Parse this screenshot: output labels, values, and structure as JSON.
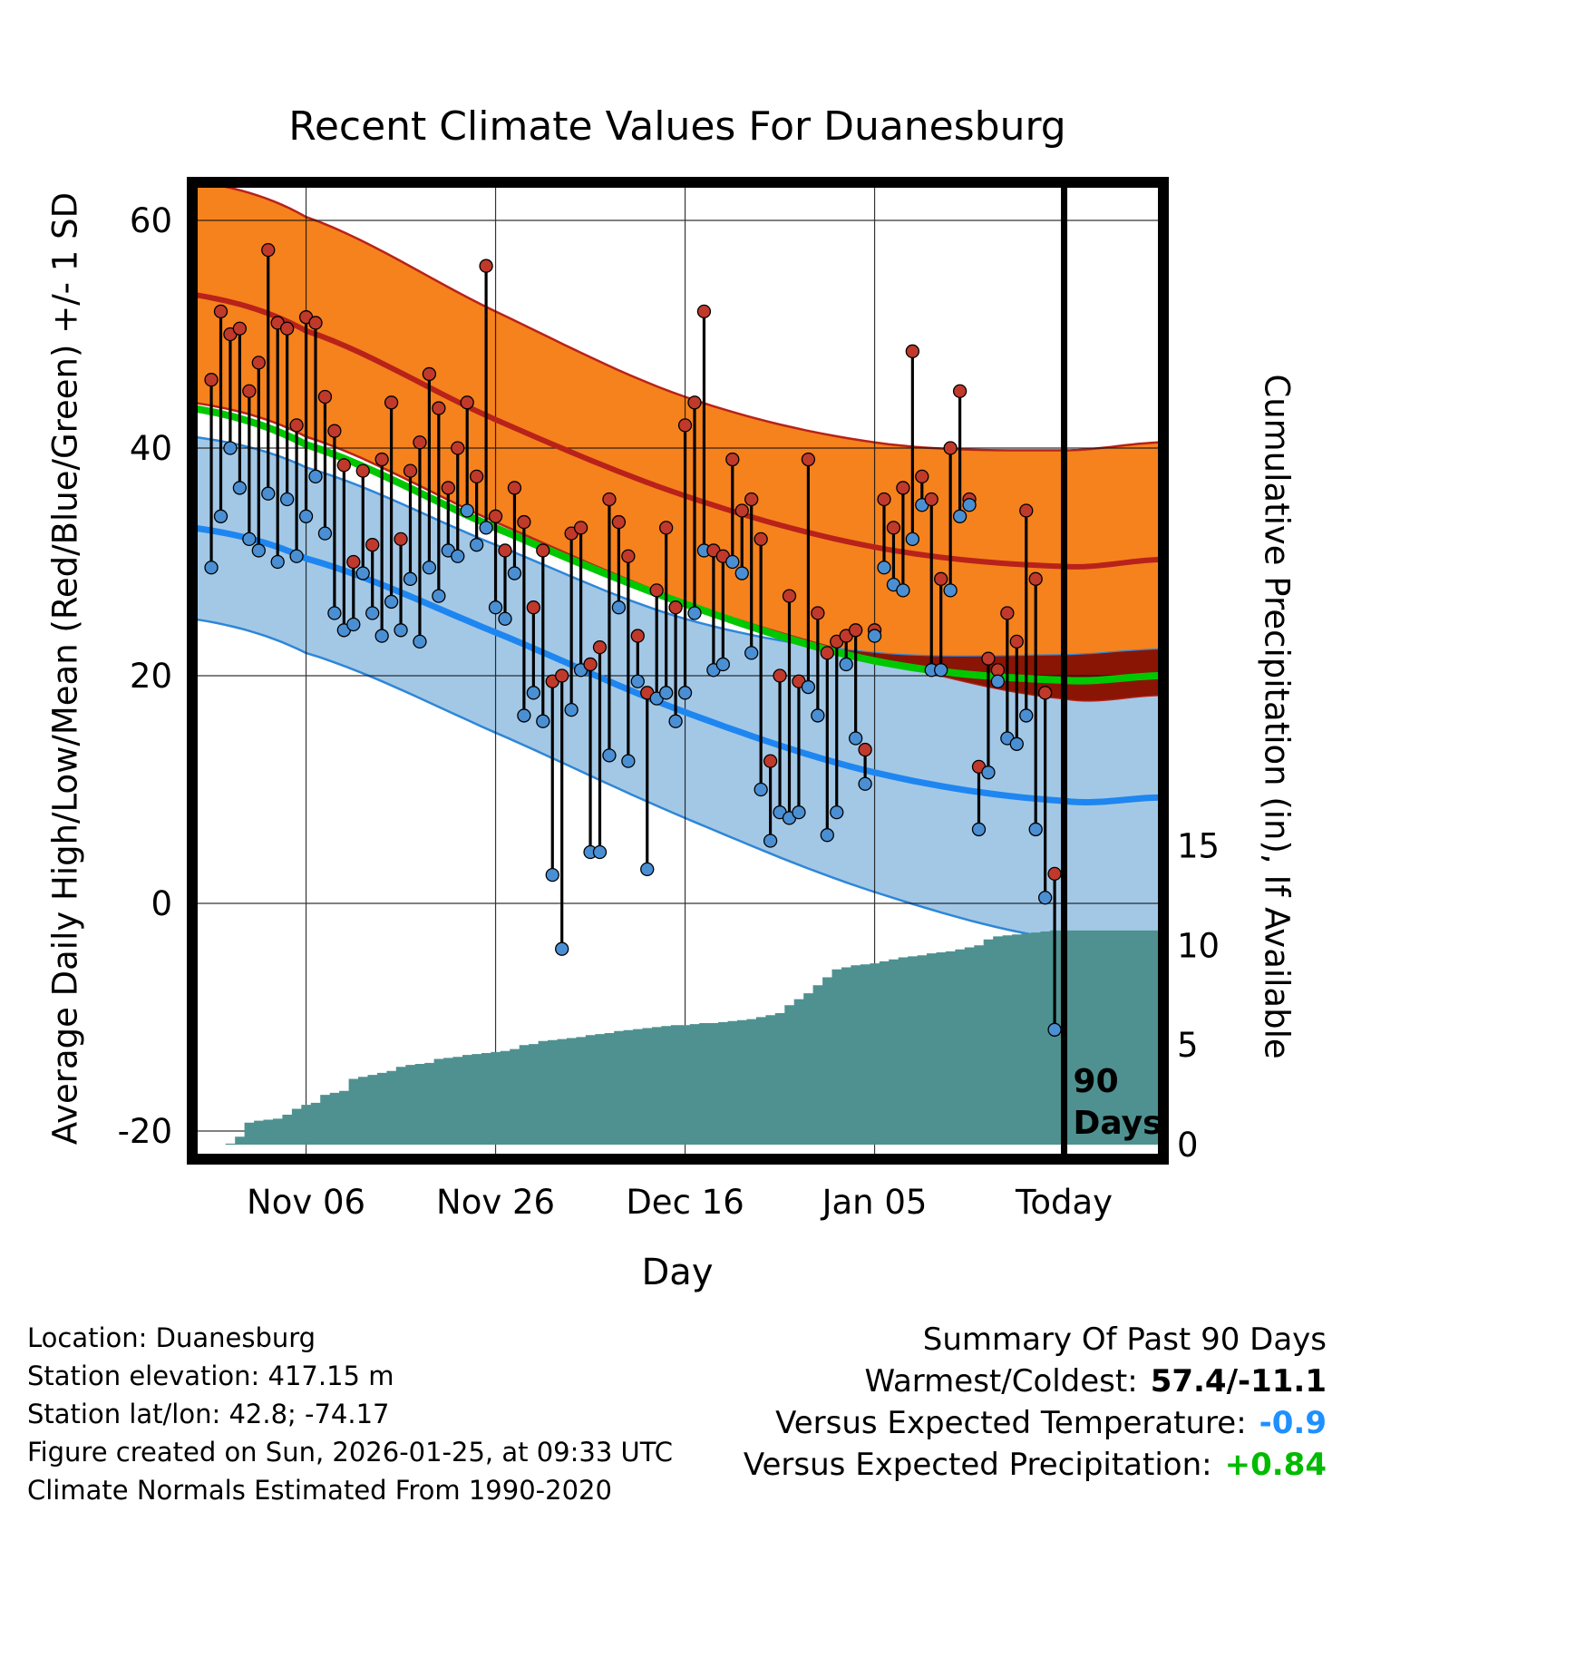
{
  "footer": {
    "left_lines": [
      "Location: Duanesburg",
      "Station elevation: 417.15 m",
      "Station lat/lon: 42.8; -74.17",
      "Figure created on Sun, 2026-01-25, at 09:33 UTC",
      "Climate Normals Estimated From 1990-2020"
    ],
    "summary": {
      "title": "Summary Of Past 90 Days",
      "rows": [
        {
          "label": "Warmest/Coldest:",
          "value": "57.4/-11.1",
          "color": "#000000"
        },
        {
          "label": "Versus Expected Temperature:",
          "value": "-0.9",
          "color": "#1E90FF"
        },
        {
          "label": "Versus Expected Precipitation:",
          "value": "+0.84",
          "color": "#00BB00"
        }
      ]
    }
  },
  "colors": {
    "high_band": "#F5821D",
    "high_line": "#B8221A",
    "overlap_band": "#8A1505",
    "low_band": "#A3C8E6",
    "low_edge": "#2E86D8",
    "low_line": "#1E86F0",
    "mean_line": "#00C800",
    "precip_fill": "#4F9191",
    "high_dot": "#C0392B",
    "low_dot": "#4A8FD3",
    "grid": "#111111"
  },
  "chart_data": {
    "type": "line",
    "title": "Recent Climate Values For Duanesburg",
    "xlabel": "Day",
    "ylabel_left": "Average Daily High/Low/Mean (Red/Blue/Green) +/- 1 SD",
    "ylabel_right": "Cumulative Precipitation (in), If Available",
    "x_ticks": [
      {
        "label": "Nov 06",
        "day": 10
      },
      {
        "label": "Nov 26",
        "day": 30
      },
      {
        "label": "Dec 16",
        "day": 50
      },
      {
        "label": "Jan 05",
        "day": 70
      },
      {
        "label": "Today",
        "day": 90
      }
    ],
    "y_ticks_left": [
      -20,
      0,
      20,
      40,
      60
    ],
    "y_ticks_right": [
      0,
      5,
      10,
      15
    ],
    "ylim_left": [
      -22,
      63
    ],
    "ylim_right": [
      0,
      48
    ],
    "grid": true,
    "today_day": 90,
    "today_label": {
      "line1": "90",
      "line2": "Days"
    },
    "daily": {
      "first_day_index": 0,
      "high": [
        46,
        52,
        50,
        50.5,
        45,
        47.5,
        57.4,
        51,
        50.5,
        42,
        51.5,
        51,
        44.5,
        41.5,
        38.5,
        30,
        38,
        31.5,
        39,
        44,
        32,
        38,
        40.5,
        46.5,
        43.5,
        36.5,
        40,
        44,
        37.5,
        56,
        34,
        31,
        36.5,
        33.5,
        26,
        31,
        19.5,
        20,
        32.5,
        33,
        21,
        22.5,
        35.5,
        33.5,
        30.5,
        23.5,
        18.5,
        27.5,
        33,
        26,
        42,
        44,
        52,
        31,
        30.5,
        39,
        34.5,
        35.5,
        32,
        12.5,
        20,
        27,
        19.5,
        39,
        25.5,
        22,
        23,
        23.5,
        24,
        13.5,
        24,
        35.5,
        33,
        36.5,
        48.5,
        37.5,
        35.5,
        28.5,
        40,
        45,
        35.5,
        12,
        21.5,
        20.5,
        25.5,
        23,
        34.5,
        28.5,
        18.5,
        2.6
      ],
      "low": [
        29.5,
        34,
        40,
        36.5,
        32,
        31,
        36,
        30,
        35.5,
        30.5,
        34,
        37.5,
        32.5,
        25.5,
        24,
        24.5,
        29,
        25.5,
        23.5,
        26.5,
        24,
        28.5,
        23,
        29.5,
        27,
        31,
        30.5,
        34.5,
        31.5,
        33,
        26,
        25,
        29,
        16.5,
        18.5,
        16,
        2.5,
        -4,
        17,
        20.5,
        4.5,
        4.5,
        13,
        26,
        12.5,
        19.5,
        3,
        18,
        18.5,
        16,
        18.5,
        25.5,
        31,
        20.5,
        21,
        30,
        29,
        22,
        10,
        5.5,
        8,
        7.5,
        8,
        19,
        16.5,
        6,
        8,
        21,
        14.5,
        10.5,
        23.5,
        29.5,
        28,
        27.5,
        32,
        35,
        20.5,
        20.5,
        27.5,
        34,
        35,
        6.5,
        11.5,
        19.5,
        14.5,
        14,
        16.5,
        6.5,
        0.5,
        -11.1
      ],
      "cumulative_precip_in": [
        0,
        0,
        0.05,
        0.4,
        1.1,
        1.2,
        1.25,
        1.3,
        1.5,
        1.8,
        2.0,
        2.1,
        2.5,
        2.6,
        2.7,
        3.3,
        3.4,
        3.5,
        3.6,
        3.7,
        3.9,
        4.0,
        4.05,
        4.1,
        4.3,
        4.35,
        4.4,
        4.5,
        4.55,
        4.6,
        4.65,
        4.7,
        4.8,
        5.0,
        5.05,
        5.2,
        5.25,
        5.3,
        5.35,
        5.4,
        5.5,
        5.55,
        5.6,
        5.7,
        5.75,
        5.8,
        5.85,
        5.9,
        5.95,
        6.0,
        6.0,
        6.05,
        6.1,
        6.1,
        6.15,
        6.2,
        6.25,
        6.3,
        6.4,
        6.5,
        6.6,
        7.0,
        7.3,
        7.6,
        8.0,
        8.4,
        8.8,
        8.9,
        9.0,
        9.05,
        9.1,
        9.2,
        9.3,
        9.4,
        9.45,
        9.5,
        9.6,
        9.65,
        9.7,
        9.8,
        9.9,
        10.0,
        10.3,
        10.45,
        10.5,
        10.55,
        10.6,
        10.65,
        10.7,
        10.75
      ]
    },
    "normals": {
      "day_index": [
        -2,
        10,
        30,
        50,
        70,
        90,
        100
      ],
      "high_plus_sd": [
        63.5,
        60.3,
        52,
        44.5,
        40.5,
        39.8,
        40.5
      ],
      "high_mean": [
        53.5,
        50.3,
        42.5,
        35.8,
        31.3,
        29.6,
        30.2
      ],
      "high_minus_sd": [
        44,
        41,
        33.5,
        26.5,
        21.5,
        18.0,
        18.3
      ],
      "low_plus_sd": [
        41,
        38.3,
        31.5,
        25.0,
        22.0,
        21.8,
        22.3
      ],
      "low_mean": [
        33,
        30.3,
        23.8,
        16.8,
        11.5,
        9.0,
        9.3
      ],
      "low_minus_sd": [
        25,
        22,
        15,
        7.5,
        1.0,
        -3.2,
        -3.5
      ],
      "mean": [
        43.5,
        40.3,
        33.0,
        26.3,
        21.3,
        19.6,
        20.0
      ]
    }
  }
}
